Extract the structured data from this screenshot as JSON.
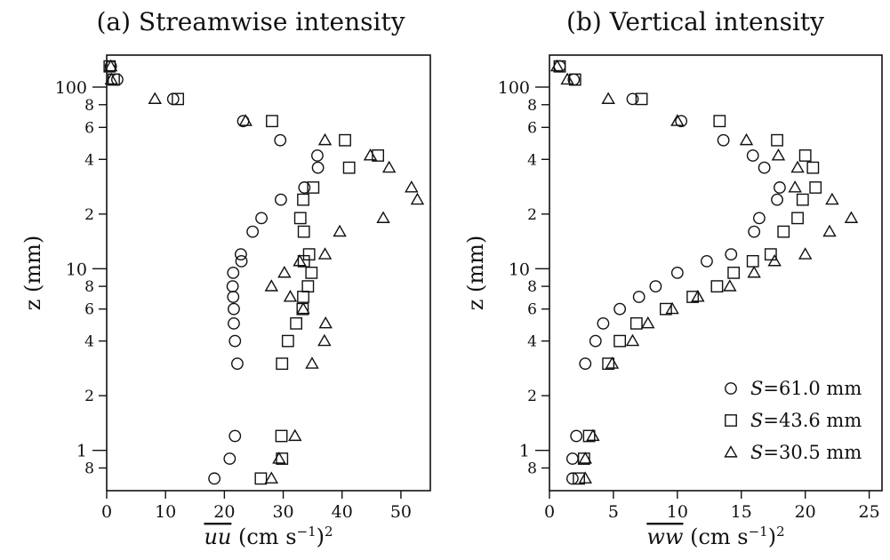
{
  "chart_data": [
    {
      "type": "scatter",
      "title": "(a) Streamwise intensity",
      "xlabel_base": "uu",
      "xlabel_unit": "(cm s",
      "xlabel_exp": "−1",
      "xlabel_tail": ")",
      "xlabel_sq": "2",
      "ylabel": "z (mm)",
      "xlim": [
        0,
        55
      ],
      "ylim": [
        0.6,
        150
      ],
      "yscale": "log",
      "x_ticks": [
        0,
        10,
        20,
        30,
        40,
        50
      ],
      "x_tick_labels": [
        "0",
        "10",
        "20",
        "30",
        "40",
        "50"
      ],
      "y_major_ticks": [
        1,
        10,
        100
      ],
      "y_major_labels": [
        "1",
        "10",
        "100"
      ],
      "y_minor_ticks": [
        0.8,
        2,
        4,
        6,
        8,
        20,
        40,
        60,
        80
      ],
      "y_minor_labels": [
        "8",
        "2",
        "4",
        "6",
        "8",
        "2",
        "4",
        "6",
        "8"
      ],
      "series": [
        {
          "marker": "circle",
          "points": [
            [
              0.7,
              130
            ],
            [
              1.8,
              110
            ],
            [
              11.3,
              86
            ],
            [
              23.2,
              65
            ],
            [
              29.5,
              51
            ],
            [
              35.8,
              42
            ],
            [
              35.9,
              36
            ],
            [
              33.6,
              28
            ],
            [
              29.6,
              24
            ],
            [
              26.3,
              19
            ],
            [
              24.8,
              16
            ],
            [
              22.8,
              12
            ],
            [
              22.9,
              11
            ],
            [
              21.5,
              9.5
            ],
            [
              21.4,
              8
            ],
            [
              21.5,
              7
            ],
            [
              21.6,
              6
            ],
            [
              21.6,
              5
            ],
            [
              21.8,
              4
            ],
            [
              22.2,
              3
            ],
            [
              21.8,
              1.2
            ],
            [
              20.9,
              0.9
            ],
            [
              18.3,
              0.7
            ]
          ]
        },
        {
          "marker": "square",
          "points": [
            [
              0.5,
              130
            ],
            [
              1.2,
              110
            ],
            [
              12.1,
              86
            ],
            [
              28.1,
              65
            ],
            [
              40.5,
              51
            ],
            [
              46.1,
              42
            ],
            [
              41.2,
              36
            ],
            [
              35.1,
              28
            ],
            [
              33.4,
              24
            ],
            [
              32.9,
              19
            ],
            [
              33.5,
              16
            ],
            [
              34.4,
              12
            ],
            [
              33.5,
              11
            ],
            [
              34.8,
              9.5
            ],
            [
              34.2,
              8
            ],
            [
              33.4,
              7
            ],
            [
              33.3,
              6
            ],
            [
              32.2,
              5
            ],
            [
              30.8,
              4
            ],
            [
              29.8,
              3
            ],
            [
              29.7,
              1.2
            ],
            [
              29.8,
              0.9
            ],
            [
              26.2,
              0.7
            ]
          ]
        },
        {
          "marker": "triangle",
          "points": [
            [
              0.7,
              130
            ],
            [
              0.8,
              110
            ],
            [
              8.2,
              86
            ],
            [
              23.6,
              65
            ],
            [
              37.1,
              51
            ],
            [
              44.8,
              42
            ],
            [
              48.0,
              36
            ],
            [
              51.8,
              28
            ],
            [
              52.8,
              24
            ],
            [
              47.0,
              19
            ],
            [
              39.6,
              16
            ],
            [
              37.1,
              12
            ],
            [
              32.8,
              11
            ],
            [
              30.2,
              9.5
            ],
            [
              28.0,
              8
            ],
            [
              31.2,
              7
            ],
            [
              33.4,
              6
            ],
            [
              37.2,
              5
            ],
            [
              37.0,
              4
            ],
            [
              34.9,
              3
            ],
            [
              32.0,
              1.2
            ],
            [
              29.3,
              0.9
            ],
            [
              28.0,
              0.7
            ]
          ]
        }
      ]
    },
    {
      "type": "scatter",
      "title": "(b) Vertical intensity",
      "xlabel_base": "ww",
      "xlabel_unit": "(cm s",
      "xlabel_exp": "−1",
      "xlabel_tail": ")",
      "xlabel_sq": "2",
      "ylabel": "z (mm)",
      "xlim": [
        0,
        26
      ],
      "ylim": [
        0.6,
        150
      ],
      "yscale": "log",
      "x_ticks": [
        0,
        5,
        10,
        15,
        20,
        25
      ],
      "x_tick_labels": [
        "0",
        "5",
        "10",
        "15",
        "20",
        "25"
      ],
      "y_major_ticks": [
        1,
        10,
        100
      ],
      "y_major_labels": [
        "1",
        "10",
        "100"
      ],
      "y_minor_ticks": [
        0.8,
        2,
        4,
        6,
        8,
        20,
        40,
        60,
        80
      ],
      "y_minor_labels": [
        "8",
        "2",
        "4",
        "6",
        "8",
        "2",
        "4",
        "6",
        "8"
      ],
      "legend": {
        "placement": "bottom-right",
        "entries": [
          {
            "marker": "circle",
            "label": "S=61.0 mm"
          },
          {
            "marker": "square",
            "label": "S=43.6 mm"
          },
          {
            "marker": "triangle",
            "label": "S=30.5 mm"
          }
        ]
      },
      "series": [
        {
          "marker": "circle",
          "points": [
            [
              0.8,
              130
            ],
            [
              1.9,
              110
            ],
            [
              6.5,
              86
            ],
            [
              10.3,
              65
            ],
            [
              13.6,
              51
            ],
            [
              15.9,
              42
            ],
            [
              16.8,
              36
            ],
            [
              18.0,
              28
            ],
            [
              17.8,
              24
            ],
            [
              16.4,
              19
            ],
            [
              16.0,
              16
            ],
            [
              14.2,
              12
            ],
            [
              12.3,
              11
            ],
            [
              10.0,
              9.5
            ],
            [
              8.3,
              8
            ],
            [
              7.0,
              7
            ],
            [
              5.5,
              6
            ],
            [
              4.2,
              5
            ],
            [
              3.6,
              4
            ],
            [
              2.8,
              3
            ],
            [
              2.1,
              1.2
            ],
            [
              1.8,
              0.9
            ],
            [
              1.8,
              0.7
            ]
          ]
        },
        {
          "marker": "square",
          "points": [
            [
              0.8,
              130
            ],
            [
              2.0,
              110
            ],
            [
              7.2,
              86
            ],
            [
              13.3,
              65
            ],
            [
              17.8,
              51
            ],
            [
              20.0,
              42
            ],
            [
              20.6,
              36
            ],
            [
              20.8,
              28
            ],
            [
              19.8,
              24
            ],
            [
              19.4,
              19
            ],
            [
              18.3,
              16
            ],
            [
              17.3,
              12
            ],
            [
              15.9,
              11
            ],
            [
              14.4,
              9.5
            ],
            [
              13.1,
              8
            ],
            [
              11.2,
              7
            ],
            [
              9.1,
              6
            ],
            [
              6.8,
              5
            ],
            [
              5.5,
              4
            ],
            [
              4.6,
              3
            ],
            [
              3.1,
              1.2
            ],
            [
              2.7,
              0.9
            ],
            [
              2.3,
              0.7
            ]
          ]
        },
        {
          "marker": "triangle",
          "points": [
            [
              0.6,
              130
            ],
            [
              1.4,
              110
            ],
            [
              4.6,
              86
            ],
            [
              10.0,
              65
            ],
            [
              15.4,
              51
            ],
            [
              17.9,
              42
            ],
            [
              19.4,
              36
            ],
            [
              19.2,
              28
            ],
            [
              22.1,
              24
            ],
            [
              23.6,
              19
            ],
            [
              21.9,
              16
            ],
            [
              20.0,
              12
            ],
            [
              17.6,
              11
            ],
            [
              16.0,
              9.5
            ],
            [
              14.1,
              8
            ],
            [
              11.6,
              7
            ],
            [
              9.6,
              6
            ],
            [
              7.7,
              5
            ],
            [
              6.5,
              4
            ],
            [
              4.9,
              3
            ],
            [
              3.4,
              1.2
            ],
            [
              2.8,
              0.9
            ],
            [
              2.8,
              0.7
            ]
          ]
        }
      ]
    }
  ]
}
